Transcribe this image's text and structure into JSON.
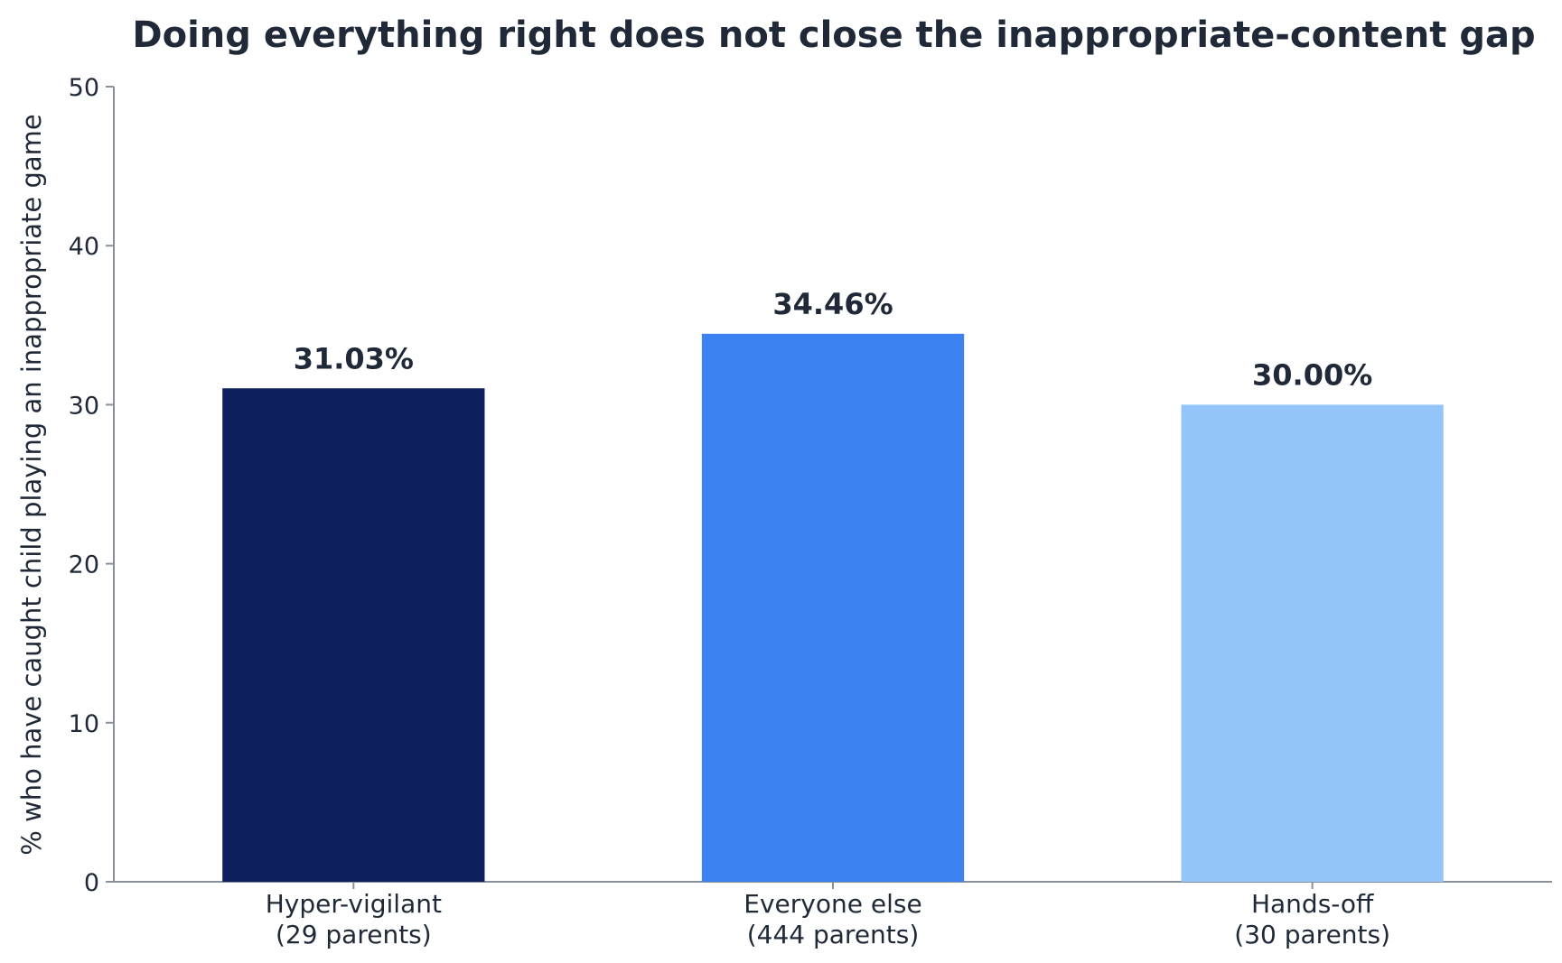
{
  "chart_data": {
    "type": "bar",
    "title": "Doing everything right does not close the inappropriate-content gap",
    "ylabel": "% who have caught child playing an inappropriate game",
    "xlabel": "",
    "ylim": [
      0,
      50
    ],
    "yticks": [
      0,
      10,
      20,
      30,
      40,
      50
    ],
    "grid": false,
    "categories": [
      {
        "name": "Hyper-vigilant",
        "sub": "(29 parents)"
      },
      {
        "name": "Everyone else",
        "sub": "(444 parents)"
      },
      {
        "name": "Hands-off",
        "sub": "(30 parents)"
      }
    ],
    "values": [
      31.03,
      34.46,
      30.0
    ],
    "value_labels": [
      "31.03%",
      "34.46%",
      "30.00%"
    ],
    "colors": [
      "#0d1f5c",
      "#3d82f2",
      "#93c4fa"
    ]
  }
}
